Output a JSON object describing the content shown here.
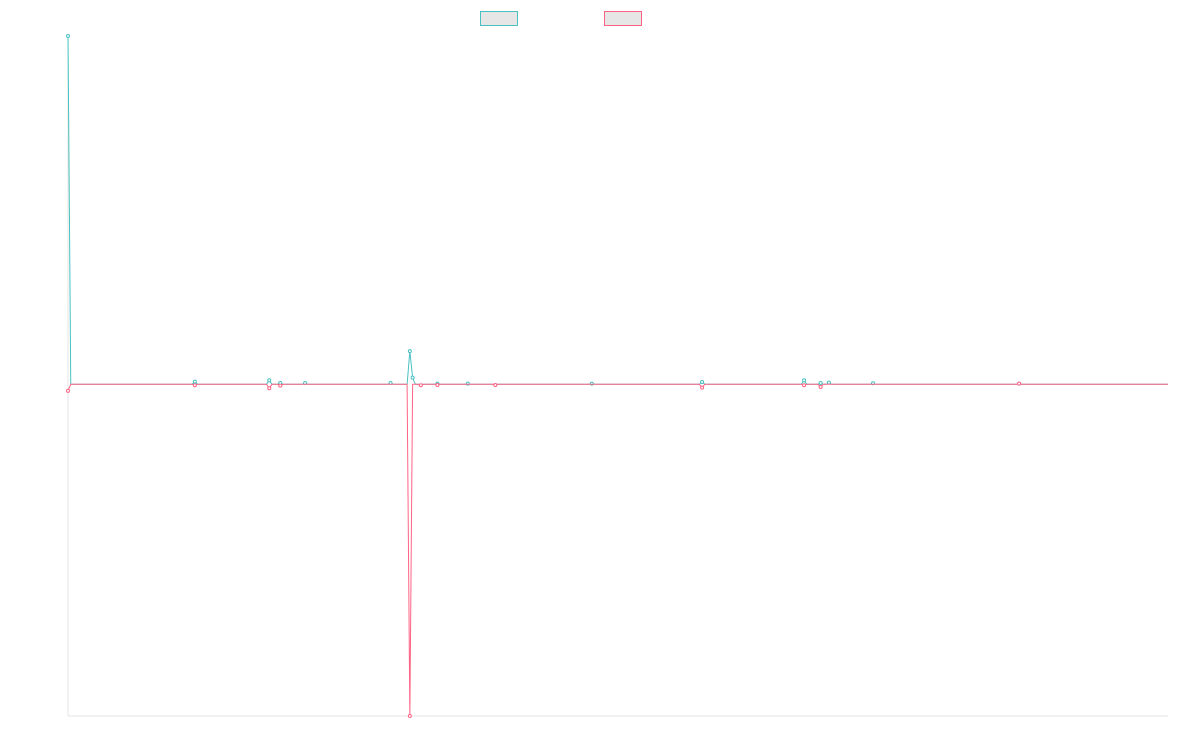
{
  "chart_data": {
    "type": "line",
    "title": "",
    "xlabel": "",
    "ylabel": "",
    "ylim": [
      -1,
      1.05
    ],
    "grid": false,
    "legend_position": "top-center",
    "colors": [
      "#4bc0c0",
      "#ff6384"
    ],
    "x_count": 400,
    "series": [
      {
        "name": "",
        "color": "#4bc0c0",
        "sparse_points": [
          [
            0,
            1.05
          ],
          [
            1,
            0.0
          ],
          [
            46,
            0.008
          ],
          [
            73,
            0.012
          ],
          [
            77,
            0.004
          ],
          [
            86,
            0.004
          ],
          [
            117,
            0.004
          ],
          [
            124,
            0.1
          ],
          [
            125,
            0.02
          ],
          [
            134,
            0.002
          ],
          [
            145,
            0.002
          ],
          [
            190,
            0.002
          ],
          [
            230,
            0.007
          ],
          [
            267,
            0.012
          ],
          [
            273,
            0.004
          ],
          [
            276,
            0.005
          ],
          [
            292,
            0.003
          ],
          [
            345,
            0.002
          ]
        ]
      },
      {
        "name": "",
        "color": "#ff6384",
        "sparse_points": [
          [
            0,
            -0.02
          ],
          [
            1,
            0.0
          ],
          [
            46,
            -0.003
          ],
          [
            73,
            -0.012
          ],
          [
            77,
            -0.004
          ],
          [
            124,
            -1.0
          ],
          [
            125,
            0.0
          ],
          [
            128,
            -0.003
          ],
          [
            134,
            -0.002
          ],
          [
            155,
            -0.002
          ],
          [
            230,
            -0.01
          ],
          [
            267,
            -0.003
          ],
          [
            273,
            -0.008
          ],
          [
            345,
            0.002
          ]
        ]
      }
    ]
  }
}
